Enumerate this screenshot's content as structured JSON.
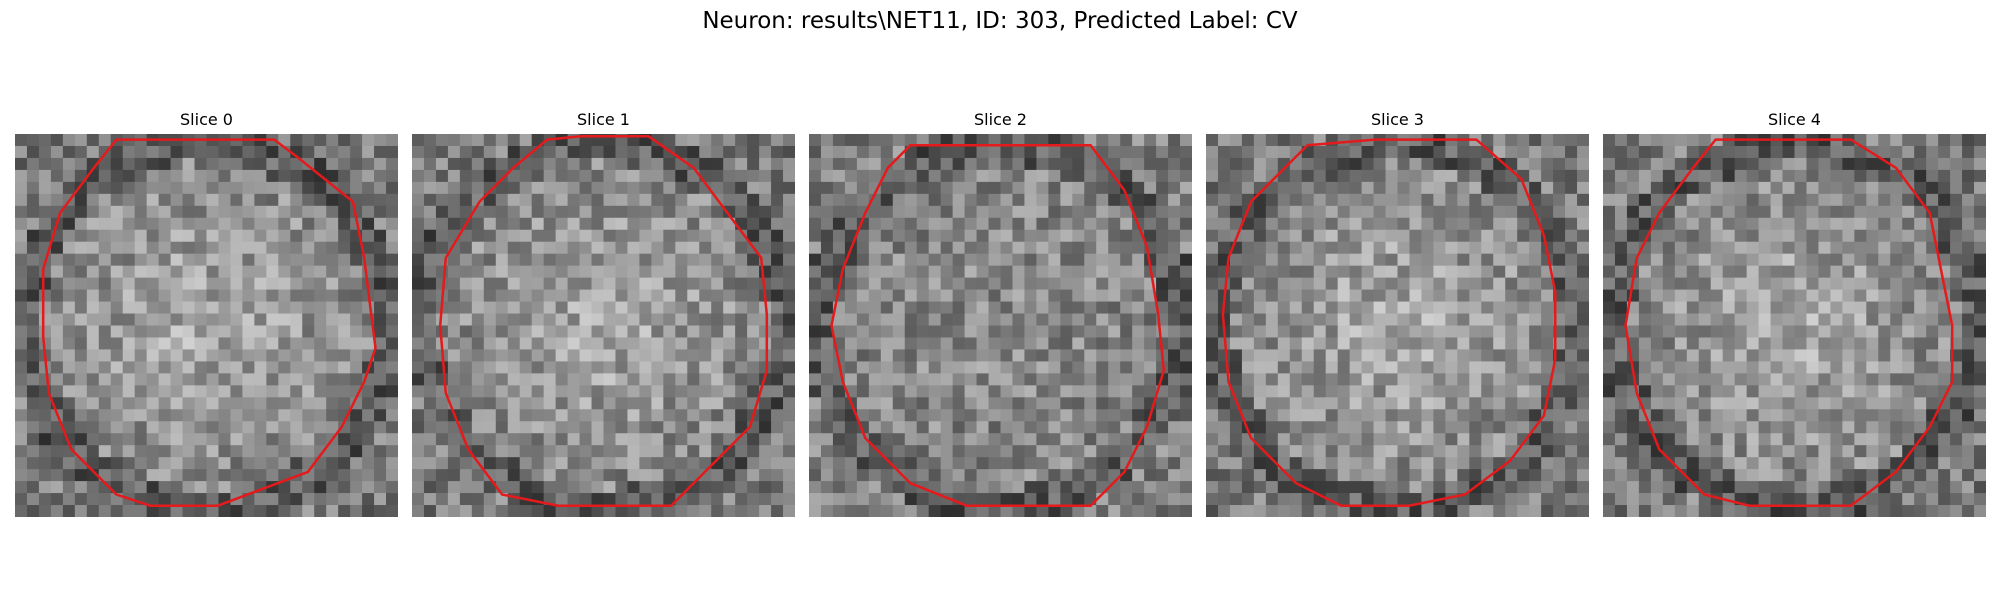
{
  "figure": {
    "title": "Neuron: results\\NET11, ID: 303, Predicted Label: CV",
    "contour_color": "#e41a1c"
  },
  "panels": [
    {
      "title": "Slice 0",
      "seed": 11,
      "bright_center": true
    },
    {
      "title": "Slice 1",
      "seed": 23,
      "bright_center": true
    },
    {
      "title": "Slice 2",
      "seed": 37,
      "bright_center": false
    },
    {
      "title": "Slice 3",
      "seed": 41,
      "bright_center": true
    },
    {
      "title": "Slice 4",
      "seed": 59,
      "bright_center": true
    }
  ]
}
